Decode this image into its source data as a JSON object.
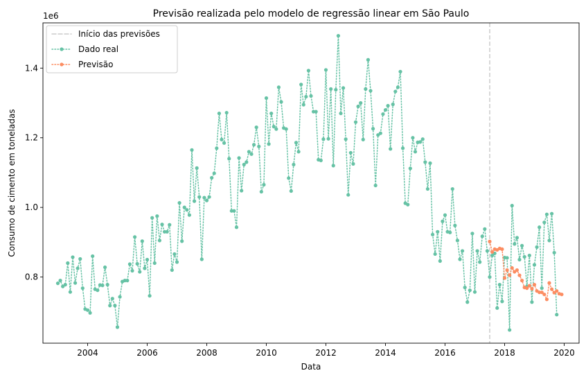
{
  "chart_data": {
    "type": "line",
    "title": "Previsão realizada pelo modelo de regressão linear em São Paulo",
    "xlabel": "Data",
    "ylabel": "Consumo de cimento em toneladas",
    "y_offset_label": "1e6",
    "xlim": [
      "2002-07-01",
      "2020-07-01"
    ],
    "ylim": [
      0.61,
      1.53
    ],
    "x_ticks": [
      2004,
      2006,
      2008,
      2010,
      2012,
      2014,
      2016,
      2018,
      2020
    ],
    "y_ticks": [
      0.8,
      1.0,
      1.2,
      1.4
    ],
    "grid": false,
    "legend_position": "top-left",
    "vline": {
      "x": "2017-07-01",
      "label": "Início das previsões",
      "color": "#cccccc",
      "style": "dashed"
    },
    "series": [
      {
        "name": "Dado real",
        "color": "#66c2a5",
        "style": "dotted-markers",
        "start": "2003-01",
        "values": [
          0.782,
          0.79,
          0.773,
          0.778,
          0.84,
          0.757,
          0.857,
          0.783,
          0.825,
          0.852,
          0.768,
          0.708,
          0.705,
          0.697,
          0.86,
          0.765,
          0.762,
          0.777,
          0.776,
          0.828,
          0.778,
          0.718,
          0.738,
          0.718,
          0.656,
          0.743,
          0.787,
          0.79,
          0.79,
          0.837,
          0.818,
          0.915,
          0.838,
          0.815,
          0.903,
          0.825,
          0.85,
          0.746,
          0.97,
          0.84,
          0.975,
          0.905,
          0.951,
          0.93,
          0.93,
          0.95,
          0.82,
          0.866,
          0.843,
          1.013,
          0.903,
          1.0,
          0.993,
          0.978,
          1.165,
          1.018,
          1.113,
          1.03,
          0.851,
          1.028,
          1.02,
          1.03,
          1.085,
          1.098,
          1.17,
          1.27,
          1.195,
          1.185,
          1.272,
          1.14,
          0.99,
          0.99,
          0.943,
          1.142,
          1.048,
          1.123,
          1.13,
          1.16,
          1.153,
          1.18,
          1.23,
          1.175,
          1.045,
          1.065,
          1.314,
          1.182,
          1.27,
          1.232,
          1.225,
          1.345,
          1.303,
          1.228,
          1.225,
          1.084,
          1.047,
          1.123,
          1.186,
          1.16,
          1.353,
          1.295,
          1.318,
          1.393,
          1.32,
          1.275,
          1.275,
          1.137,
          1.135,
          1.196,
          1.395,
          1.197,
          1.34,
          1.12,
          1.338,
          1.493,
          1.27,
          1.343,
          1.196,
          1.036,
          1.157,
          1.125,
          1.245,
          1.29,
          1.3,
          1.195,
          1.34,
          1.424,
          1.335,
          1.226,
          1.063,
          1.208,
          1.213,
          1.268,
          1.28,
          1.292,
          1.168,
          1.296,
          1.333,
          1.345,
          1.39,
          1.17,
          1.012,
          1.008,
          1.112,
          1.2,
          1.16,
          1.187,
          1.188,
          1.196,
          1.13,
          1.053,
          1.127,
          0.922,
          0.866,
          0.93,
          0.846,
          0.96,
          0.978,
          0.93,
          0.928,
          1.053,
          0.948,
          0.905,
          0.851,
          0.875,
          0.77,
          0.728,
          0.762,
          0.925,
          0.757,
          0.875,
          0.843,
          0.917,
          0.938,
          0.875,
          0.8,
          0.862,
          0.868,
          0.711,
          0.778,
          0.73,
          0.856,
          0.855,
          0.648,
          1.005,
          0.895,
          0.913,
          0.85,
          0.89,
          0.858,
          0.773,
          0.862,
          0.728,
          0.835,
          0.886,
          0.943,
          0.768,
          0.957,
          0.98,
          0.905,
          0.982,
          0.87,
          0.692
        ]
      },
      {
        "name": "Previsão",
        "color": "#fc8d62",
        "style": "dotted-markers",
        "start": "2017-07",
        "values": [
          0.902,
          0.872,
          0.88,
          0.878,
          0.882,
          0.88,
          0.797,
          0.82,
          0.805,
          0.826,
          0.815,
          0.82,
          0.805,
          0.79,
          0.77,
          0.768,
          0.775,
          0.766,
          0.778,
          0.76,
          0.756,
          0.756,
          0.75,
          0.736,
          0.783,
          0.765,
          0.755,
          0.76,
          0.752,
          0.75
        ]
      }
    ]
  }
}
